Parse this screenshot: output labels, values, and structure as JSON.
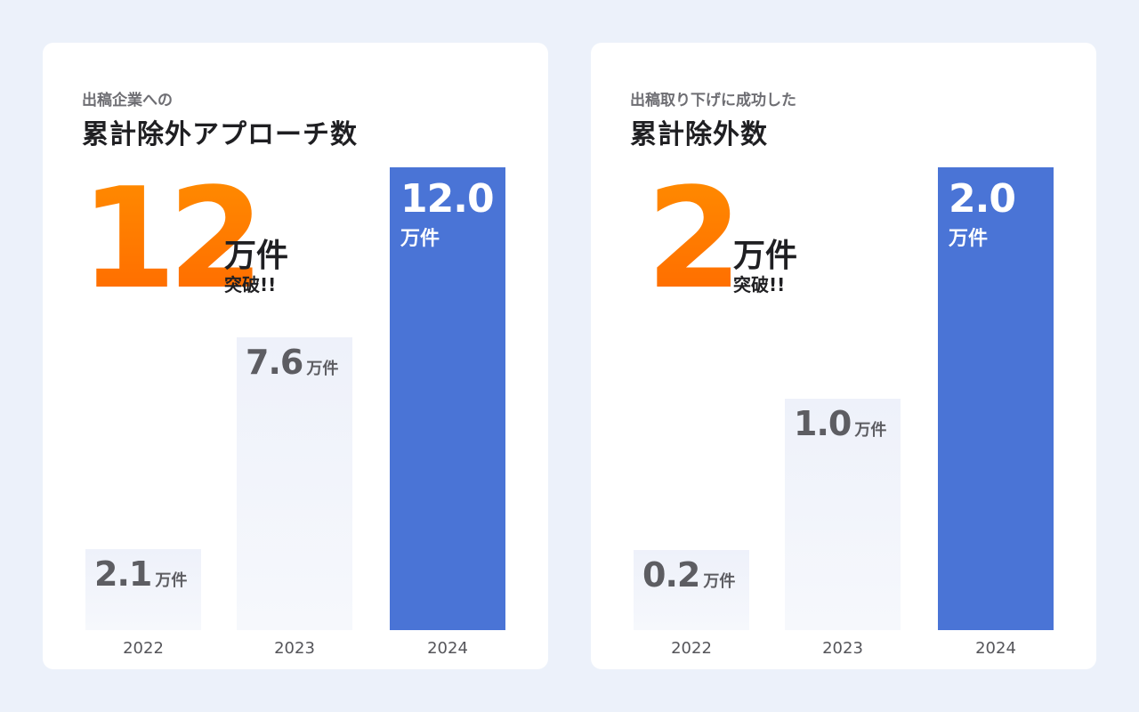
{
  "chart_data": [
    {
      "type": "bar",
      "subtitle": "出稿企業への",
      "title": "累計除外アプローチ数",
      "highlight": {
        "value": "12",
        "unit": "万件",
        "note": "突破!!"
      },
      "categories": [
        "2022",
        "2023",
        "2024"
      ],
      "values": [
        2.1,
        7.6,
        12.0
      ],
      "value_labels": [
        "2.1",
        "7.6",
        "12.0"
      ],
      "unit": "万件",
      "ylim": [
        0,
        12.0
      ],
      "colors": {
        "highlight_bar": "#4a74d6",
        "light_bar": "#eef1fa",
        "accent": "#ff7a00"
      }
    },
    {
      "type": "bar",
      "subtitle": "出稿取り下げに成功した",
      "title": "累計除外数",
      "highlight": {
        "value": "2",
        "unit": "万件",
        "note": "突破!!"
      },
      "categories": [
        "2022",
        "2023",
        "2024"
      ],
      "values": [
        0.2,
        1.0,
        2.0
      ],
      "value_labels": [
        "0.2",
        "1.0",
        "2.0"
      ],
      "unit": "万件",
      "ylim": [
        0,
        2.0
      ],
      "colors": {
        "highlight_bar": "#4a74d6",
        "light_bar": "#eef1fa",
        "accent": "#ff7a00"
      }
    }
  ]
}
